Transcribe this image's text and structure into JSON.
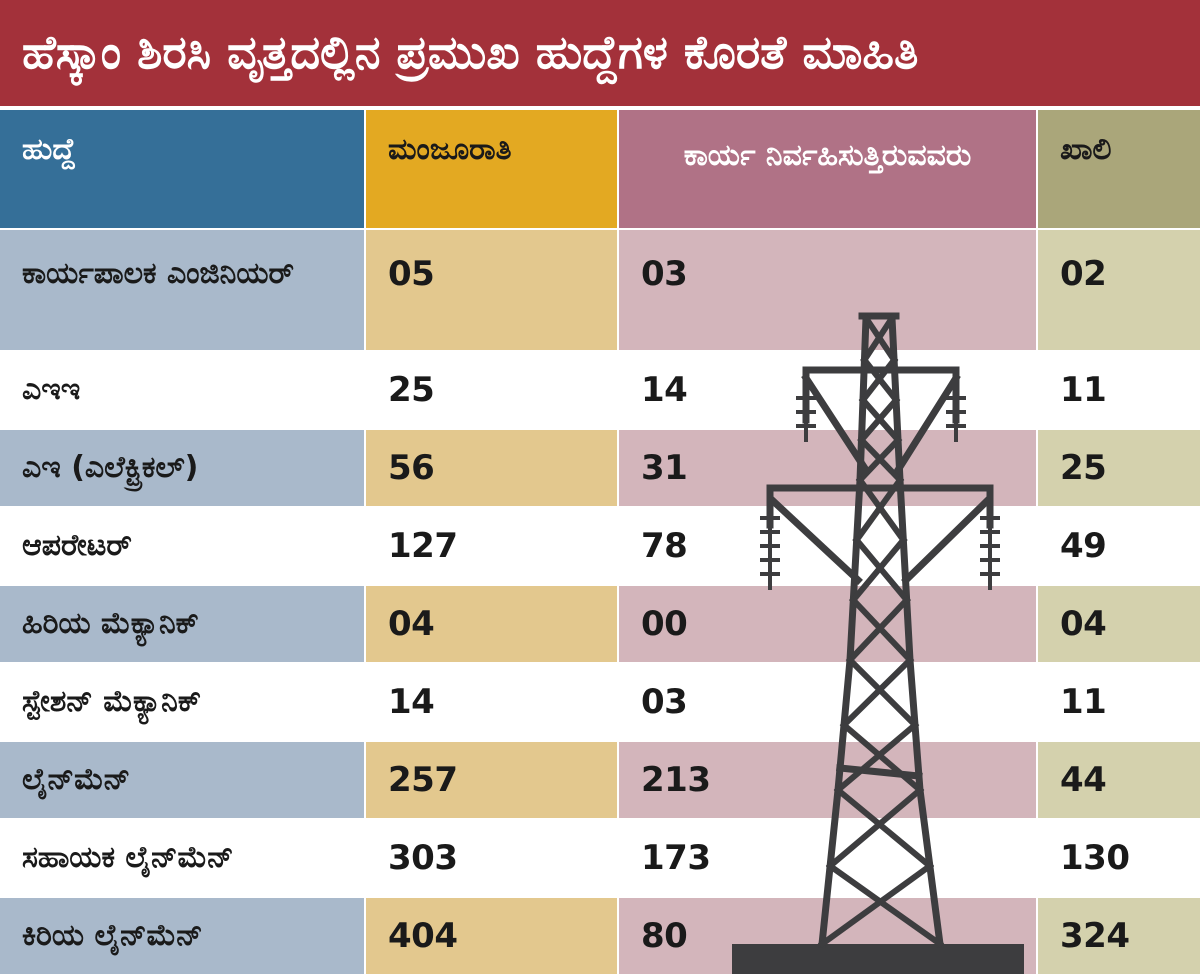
{
  "title": "ಹೆಸ್ಕಾಂ ಶಿರಸಿ ವೃತ್ತದಲ್ಲಿನ ಪ್ರಮುಖ ಹುದ್ದೆಗಳ ಕೊರತೆ ಮಾಹಿತಿ",
  "colors": {
    "title_bg": "#a3313a",
    "col1_header": "#356f98",
    "col2_header": "#e3a922",
    "col3_header": "#b07286",
    "col4_header": "#aaa67a",
    "col1_shade": "#a9b9cb",
    "col2_shade": "#e3c88e",
    "col3_shade": "#d3b5bb",
    "col4_shade": "#d4d1ad",
    "tower": "#3d3d3f"
  },
  "icon": "power-transmission-tower-icon",
  "chart_data": {
    "type": "table",
    "title": "ಹೆಸ್ಕಾಂ ಶಿರಸಿ ವೃತ್ತದಲ್ಲಿನ ಪ್ರಮುಖ ಹುದ್ದೆಗಳ ಕೊರತೆ ಮಾಹಿತಿ",
    "columns": [
      "ಹುದ್ದೆ",
      "ಮಂಜೂರಾತಿ",
      "ಕಾರ್ಯ ನಿರ್ವಹಿಸುತ್ತಿರುವವರು",
      "ಖಾಲಿ"
    ],
    "rows": [
      {
        "post": "ಕಾರ್ಯಪಾಲಕ ಎಂಜಿನಿಯರ್",
        "sanctioned": "05",
        "working": "03",
        "vacant": "02"
      },
      {
        "post": "ಎಇಇ",
        "sanctioned": "25",
        "working": "14",
        "vacant": "11"
      },
      {
        "post": "ಎಇ (ಎಲೆಕ್ಟ್ರಿಕಲ್)",
        "sanctioned": "56",
        "working": "31",
        "vacant": "25"
      },
      {
        "post": "ಆಪರೇಟರ್",
        "sanctioned": "127",
        "working": "78",
        "vacant": "49"
      },
      {
        "post": "ಹಿರಿಯ ಮೆಕ್ಯಾನಿಕ್",
        "sanctioned": "04",
        "working": "00",
        "vacant": "04"
      },
      {
        "post": "ಸ್ಟೇಶನ್ ಮೆಕ್ಯಾನಿಕ್",
        "sanctioned": "14",
        "working": "03",
        "vacant": "11"
      },
      {
        "post": "ಲೈನ್‌ಮೆನ್",
        "sanctioned": "257",
        "working": "213",
        "vacant": "44"
      },
      {
        "post": "ಸಹಾಯಕ ಲೈನ್‌ಮೆನ್",
        "sanctioned": "303",
        "working": "173",
        "vacant": "130"
      },
      {
        "post": "ಕಿರಿಯ ಲೈನ್‌ಮೆನ್",
        "sanctioned": "404",
        "working": "80",
        "vacant": "324"
      }
    ]
  }
}
